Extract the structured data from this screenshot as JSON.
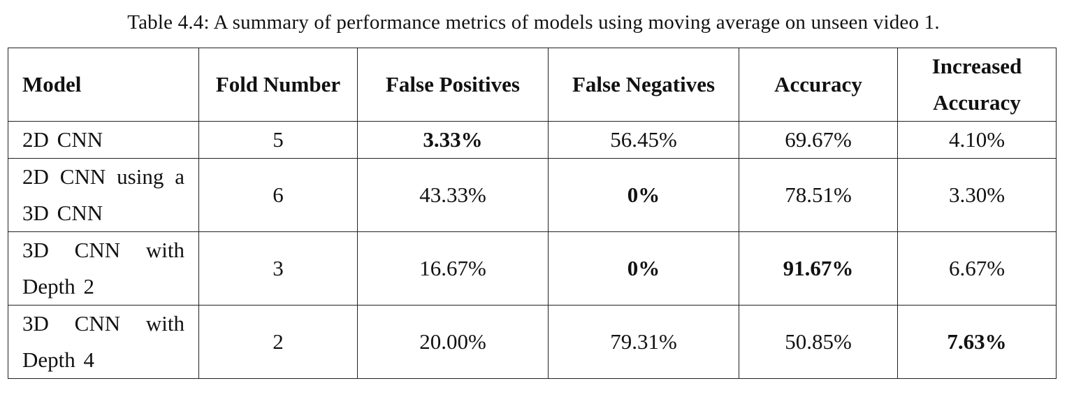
{
  "caption": "Table 4.4: A summary of performance metrics of models using moving average on unseen video 1.",
  "table": {
    "headers": [
      "Model",
      "Fold Number",
      "False Positives",
      "False Negatives",
      "Accuracy",
      "Increased Accuracy"
    ],
    "rows": [
      {
        "model": "2D CNN",
        "fold": "5",
        "false_positives": "3.33%",
        "false_negatives": "56.45%",
        "accuracy": "69.67%",
        "increased_accuracy": "4.10%",
        "bold": [
          "false_positives"
        ]
      },
      {
        "model": "2D CNN using a 3D CNN",
        "fold": "6",
        "false_positives": "43.33%",
        "false_negatives": "0%",
        "accuracy": "78.51%",
        "increased_accuracy": "3.30%",
        "bold": [
          "false_negatives"
        ]
      },
      {
        "model": "3D CNN with Depth 2",
        "fold": "3",
        "false_positives": "16.67%",
        "false_negatives": "0%",
        "accuracy": "91.67%",
        "increased_accuracy": "6.67%",
        "bold": [
          "false_negatives",
          "accuracy"
        ]
      },
      {
        "model": "3D CNN with Depth 4",
        "fold": "2",
        "false_positives": "20.00%",
        "false_negatives": "79.31%",
        "accuracy": "50.85%",
        "increased_accuracy": "7.63%",
        "bold": [
          "increased_accuracy"
        ]
      }
    ]
  }
}
